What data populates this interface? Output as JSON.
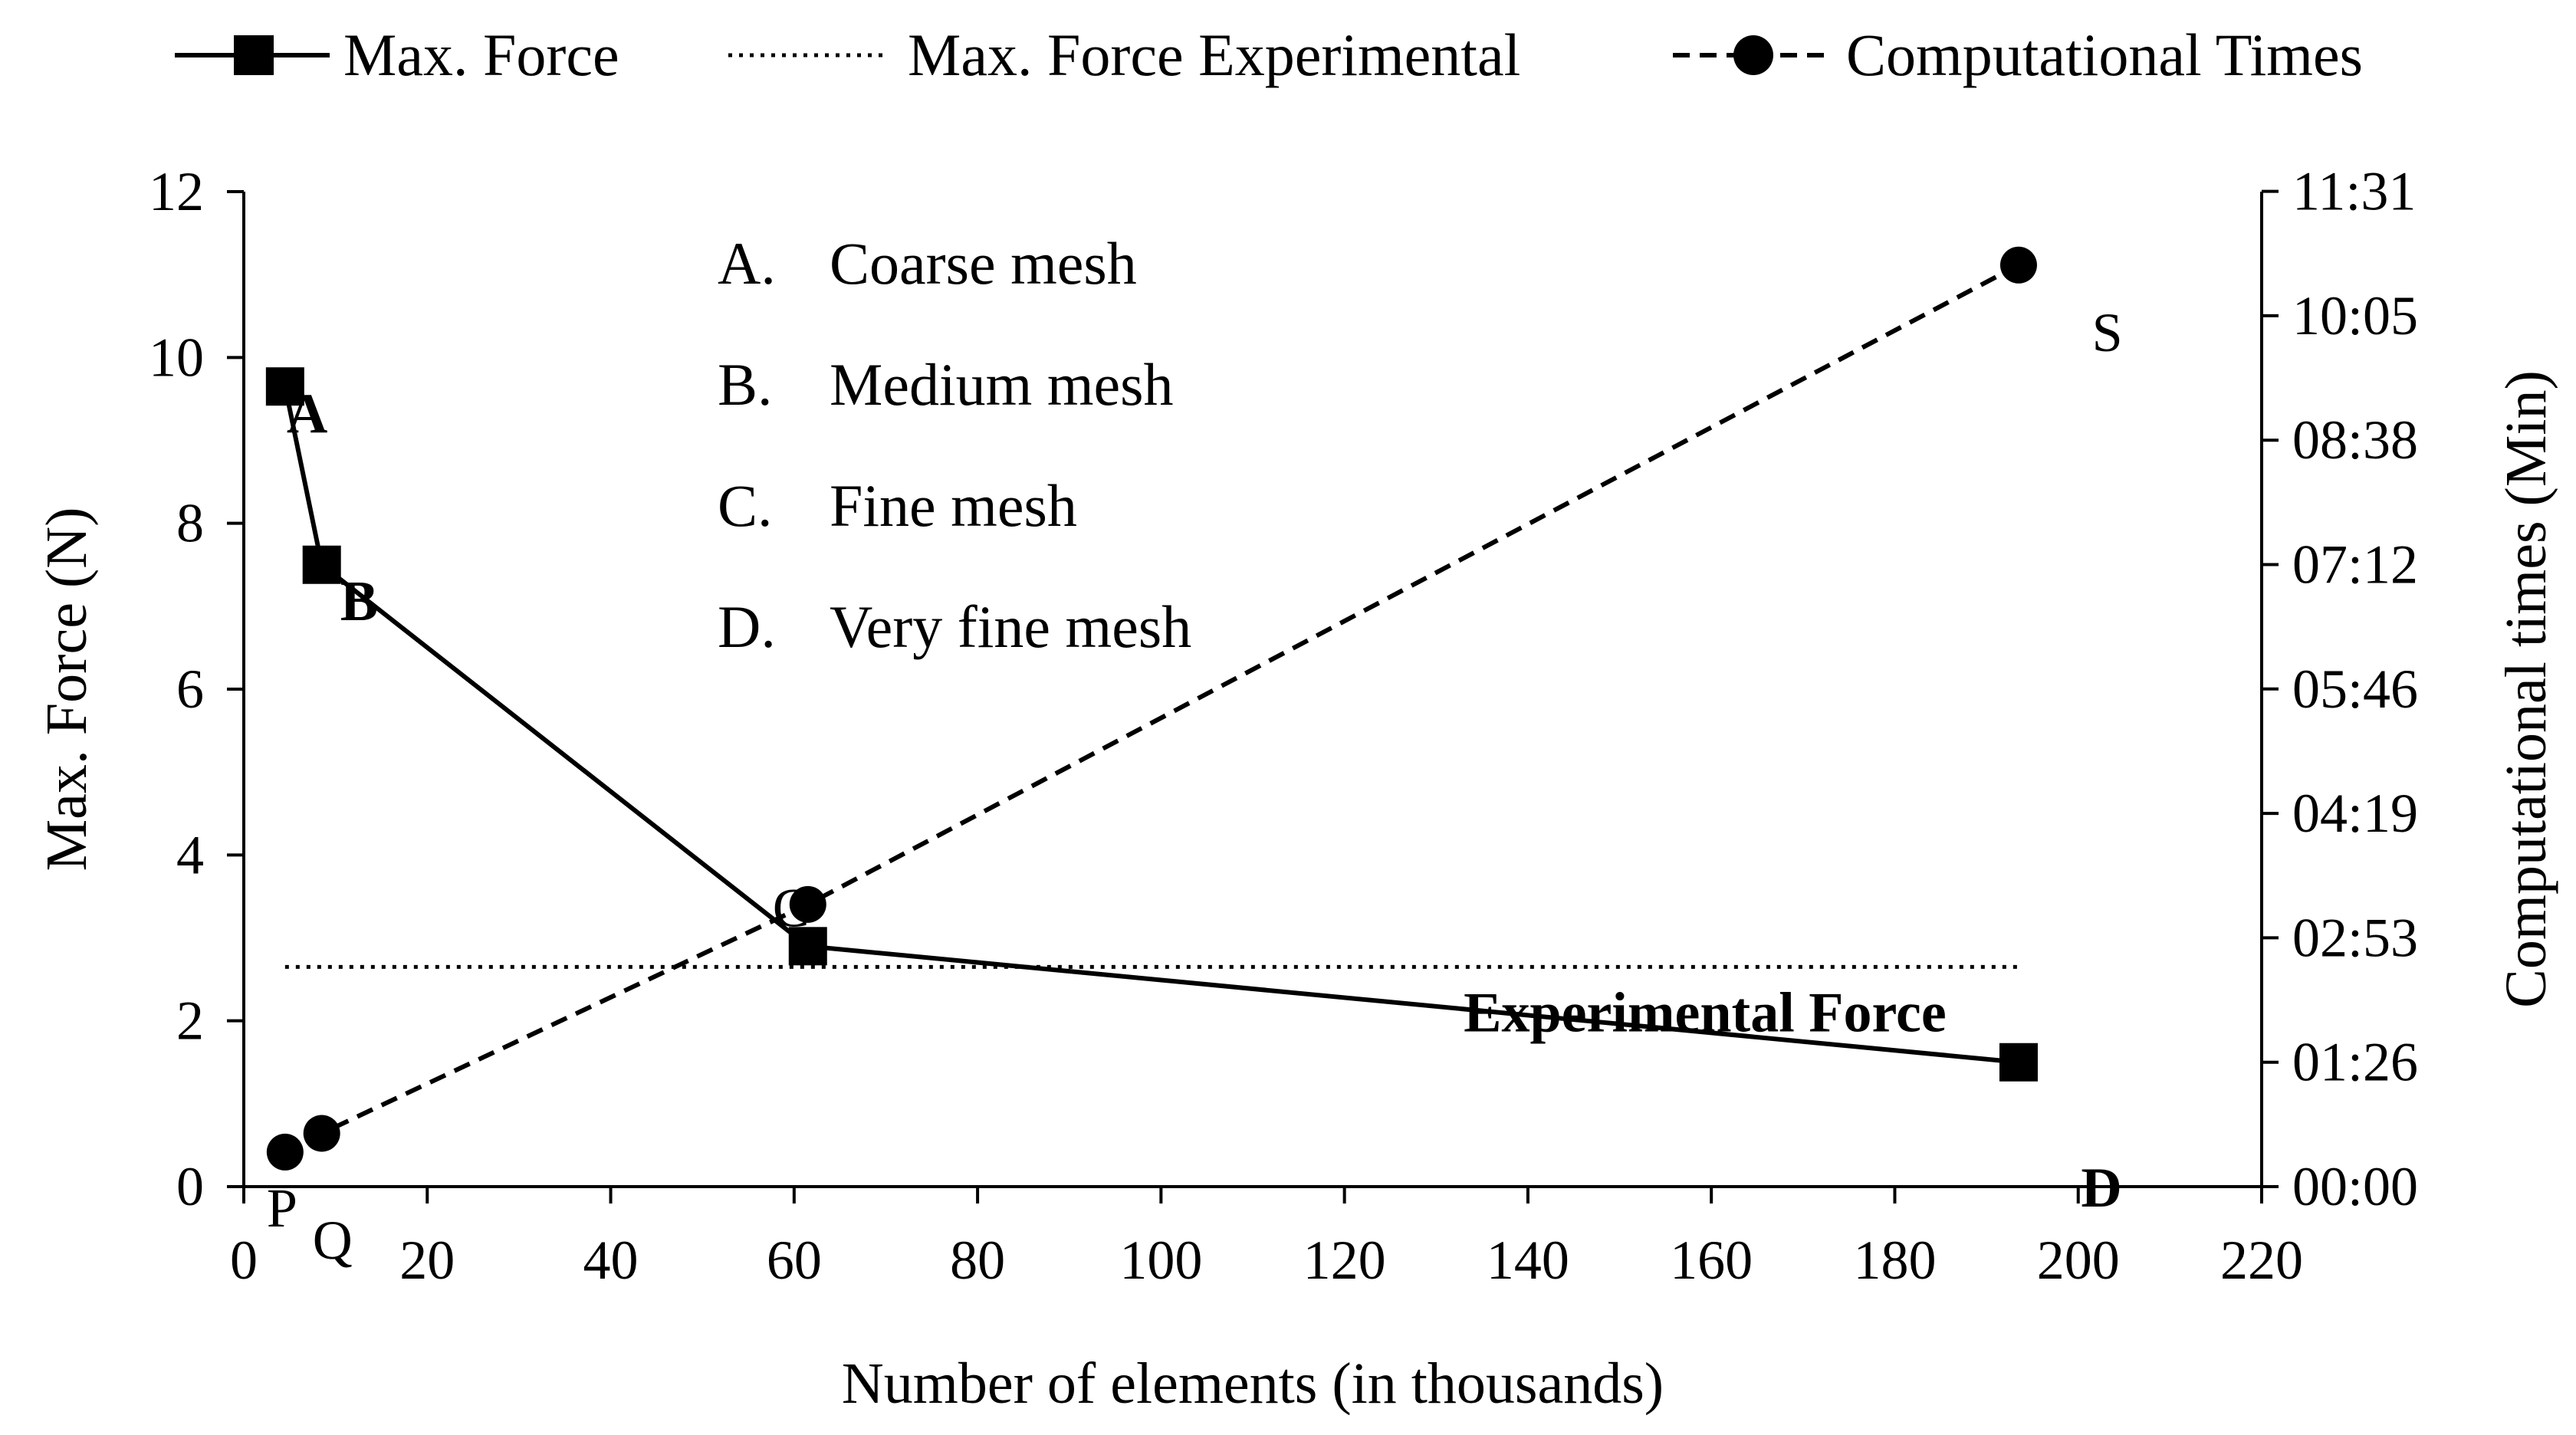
{
  "chart_data": {
    "type": "line",
    "xlabel": "Number of elements (in thousands)",
    "ylabel": "Max. Force (N)",
    "y2label": "Computational times (Min)",
    "xlim": [
      0,
      220
    ],
    "ylim": [
      0,
      12
    ],
    "xticks": [
      0,
      20,
      40,
      60,
      80,
      100,
      120,
      140,
      160,
      180,
      200,
      220
    ],
    "yticks": [
      0,
      2,
      4,
      6,
      8,
      10,
      12
    ],
    "y2_minutes_max": 691,
    "y2ticks": [
      {
        "minutes": 0,
        "label": "00:00"
      },
      {
        "minutes": 86.4,
        "label": "01:26"
      },
      {
        "minutes": 172.8,
        "label": "02:53"
      },
      {
        "minutes": 259.2,
        "label": "04:19"
      },
      {
        "minutes": 345.6,
        "label": "05:46"
      },
      {
        "minutes": 432,
        "label": "07:12"
      },
      {
        "minutes": 518.4,
        "label": "08:38"
      },
      {
        "minutes": 604.8,
        "label": "10:05"
      },
      {
        "minutes": 691.2,
        "label": "11:31"
      }
    ],
    "legend": [
      "Max. Force",
      "Max. Force Experimental",
      "Computational Times"
    ],
    "legend_position": "top",
    "grid": false,
    "series": [
      {
        "name": "Max. Force",
        "axis": "left",
        "x": [
          4.5,
          8.5,
          61.5,
          193.5
        ],
        "y": [
          9.65,
          7.5,
          2.9,
          1.5
        ],
        "style": "solid",
        "marker": "square"
      },
      {
        "name": "Max. Force Experimental",
        "axis": "left",
        "x": [
          4.5,
          193.5
        ],
        "y": [
          2.65,
          2.65
        ],
        "style": "dotted",
        "marker": "none"
      },
      {
        "name": "Computational Times",
        "axis": "right",
        "x": [
          4.5,
          8.5,
          61.5,
          193.5
        ],
        "y_minutes": [
          24,
          37,
          196,
          640
        ],
        "style": "dashed",
        "marker": "circle"
      }
    ],
    "mesh_legend": [
      {
        "letter": "A.",
        "text": "Coarse mesh"
      },
      {
        "letter": "B.",
        "text": "Medium mesh"
      },
      {
        "letter": "C.",
        "text": "Fine mesh"
      },
      {
        "letter": "D.",
        "text": "Very fine mesh"
      }
    ],
    "point_labels": [
      {
        "text": "A",
        "bold": true
      },
      {
        "text": "B",
        "bold": true
      },
      {
        "text": "C",
        "bold": false
      },
      {
        "text": "D",
        "bold": true
      },
      {
        "text": "P",
        "bold": false
      },
      {
        "text": "Q",
        "bold": false
      },
      {
        "text": "S",
        "bold": false
      }
    ],
    "annotation": "Experimental Force"
  }
}
